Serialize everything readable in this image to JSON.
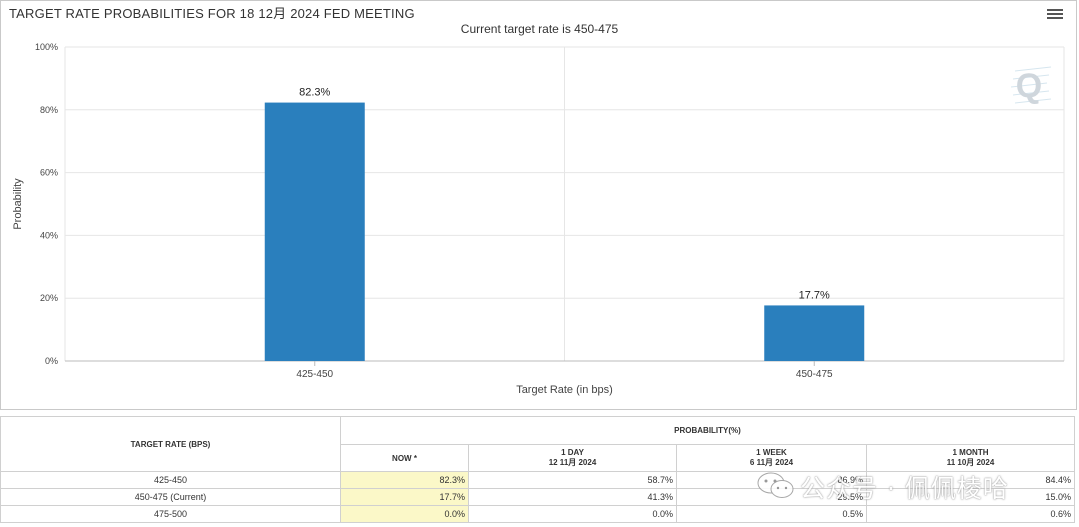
{
  "chart": {
    "title": "TARGET RATE PROBABILITIES FOR 18 12月 2024 FED MEETING",
    "subtitle": "Current target rate is 450-475"
  },
  "chart_data": {
    "type": "bar",
    "categories": [
      "425-450",
      "450-475"
    ],
    "values": [
      82.3,
      17.7
    ],
    "value_labels": [
      "82.3%",
      "17.7%"
    ],
    "title": "TARGET RATE PROBABILITIES FOR 18 12月 2024 FED MEETING",
    "subtitle": "Current target rate is 450-475",
    "xlabel": "Target Rate (in bps)",
    "ylabel": "Probability",
    "ylim": [
      0,
      100
    ],
    "yticks": [
      "0%",
      "20%",
      "40%",
      "60%",
      "80%",
      "100%"
    ],
    "ytick_values": [
      0,
      20,
      40,
      60,
      80,
      100
    ],
    "grid": true,
    "bar_color": "#2a7fbd"
  },
  "colors": {
    "bar": "#2a7fbd",
    "now_cell": "#fbf8c8",
    "grid": "#e6e6e6"
  },
  "table": {
    "rate_header": "TARGET RATE (BPS)",
    "prob_header": "PROBABILITY(%)",
    "columns": [
      {
        "label": "NOW *",
        "sub": ""
      },
      {
        "label": "1 DAY",
        "sub": "12 11月 2024"
      },
      {
        "label": "1 WEEK",
        "sub": "6 11月 2024"
      },
      {
        "label": "1 MONTH",
        "sub": "11 10月 2024"
      }
    ],
    "rows": [
      {
        "rate": "425-450",
        "now": "82.3%",
        "day": "58.7%",
        "week": "86.9%",
        "month": "84.4%"
      },
      {
        "rate": "450-475 (Current)",
        "now": "17.7%",
        "day": "41.3%",
        "week": "29.5%",
        "month": "15.0%"
      },
      {
        "rate": "475-500",
        "now": "0.0%",
        "day": "0.0%",
        "week": "0.5%",
        "month": "0.6%"
      }
    ]
  },
  "watermark": {
    "text": "公众号 · 佩佩棱哈",
    "icon": "wechat-icon"
  },
  "brand": {
    "icon": "quikstrike-logo-icon",
    "letter": "Q"
  },
  "menu": {
    "icon": "hamburger-menu-icon"
  }
}
